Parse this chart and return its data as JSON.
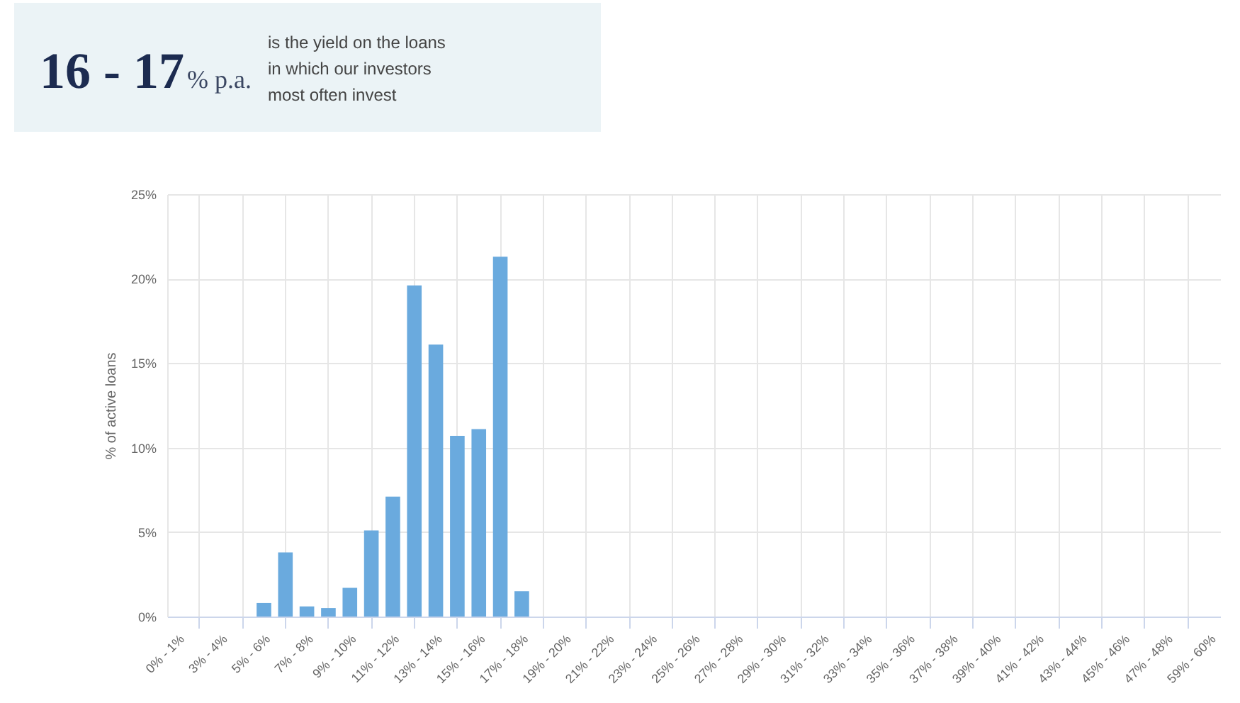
{
  "chart_data": [
    {
      "type": "other",
      "annotations": [
        "16 - 17",
        "% p.a.",
        "is the yield on the loans in which our investors most often invest"
      ]
    },
    {
      "type": "bar",
      "ylabel": "% of active loans",
      "categories": [
        "0% - 1%",
        null,
        "3% - 4%",
        null,
        "5% - 6%",
        null,
        "7% - 8%",
        null,
        "9% - 10%",
        null,
        "11% - 12%",
        null,
        "13% - 14%",
        null,
        "15% - 16%",
        null,
        "17% - 18%",
        null,
        "19% - 20%",
        null,
        "21% - 22%",
        null,
        "23% - 24%",
        null,
        "25% - 26%",
        null,
        "27% - 28%",
        null,
        "29% - 30%",
        null,
        "31% - 32%",
        null,
        "33% - 34%",
        null,
        "35% - 36%",
        null,
        "37% - 38%",
        null,
        "39% - 40%",
        null,
        "41% - 42%",
        null,
        "43% - 44%",
        null,
        "45% - 46%",
        null,
        "47% - 48%",
        null,
        "59% - 60%"
      ],
      "values": [
        0,
        0,
        0,
        0,
        0.8,
        3.8,
        0.6,
        0.5,
        1.7,
        5.1,
        7.1,
        19.6,
        16.1,
        10.7,
        11.1,
        21.3,
        1.5,
        0,
        0,
        0,
        0,
        0,
        0,
        0,
        0,
        0,
        0,
        0,
        0,
        0,
        0,
        0,
        0,
        0,
        0,
        0,
        0,
        0,
        0,
        0,
        0,
        0,
        0,
        0,
        0,
        0,
        0,
        0,
        0
      ],
      "color": "#6aaade",
      "ylim": [
        0,
        25
      ],
      "yticks": [
        {
          "value": 0,
          "label": "0%"
        },
        {
          "value": 5,
          "label": "5%"
        },
        {
          "value": 10,
          "label": "10%"
        },
        {
          "value": 15,
          "label": "15%"
        },
        {
          "value": 20,
          "label": "20%"
        },
        {
          "value": 25,
          "label": "25%"
        }
      ],
      "grid": true
    }
  ]
}
